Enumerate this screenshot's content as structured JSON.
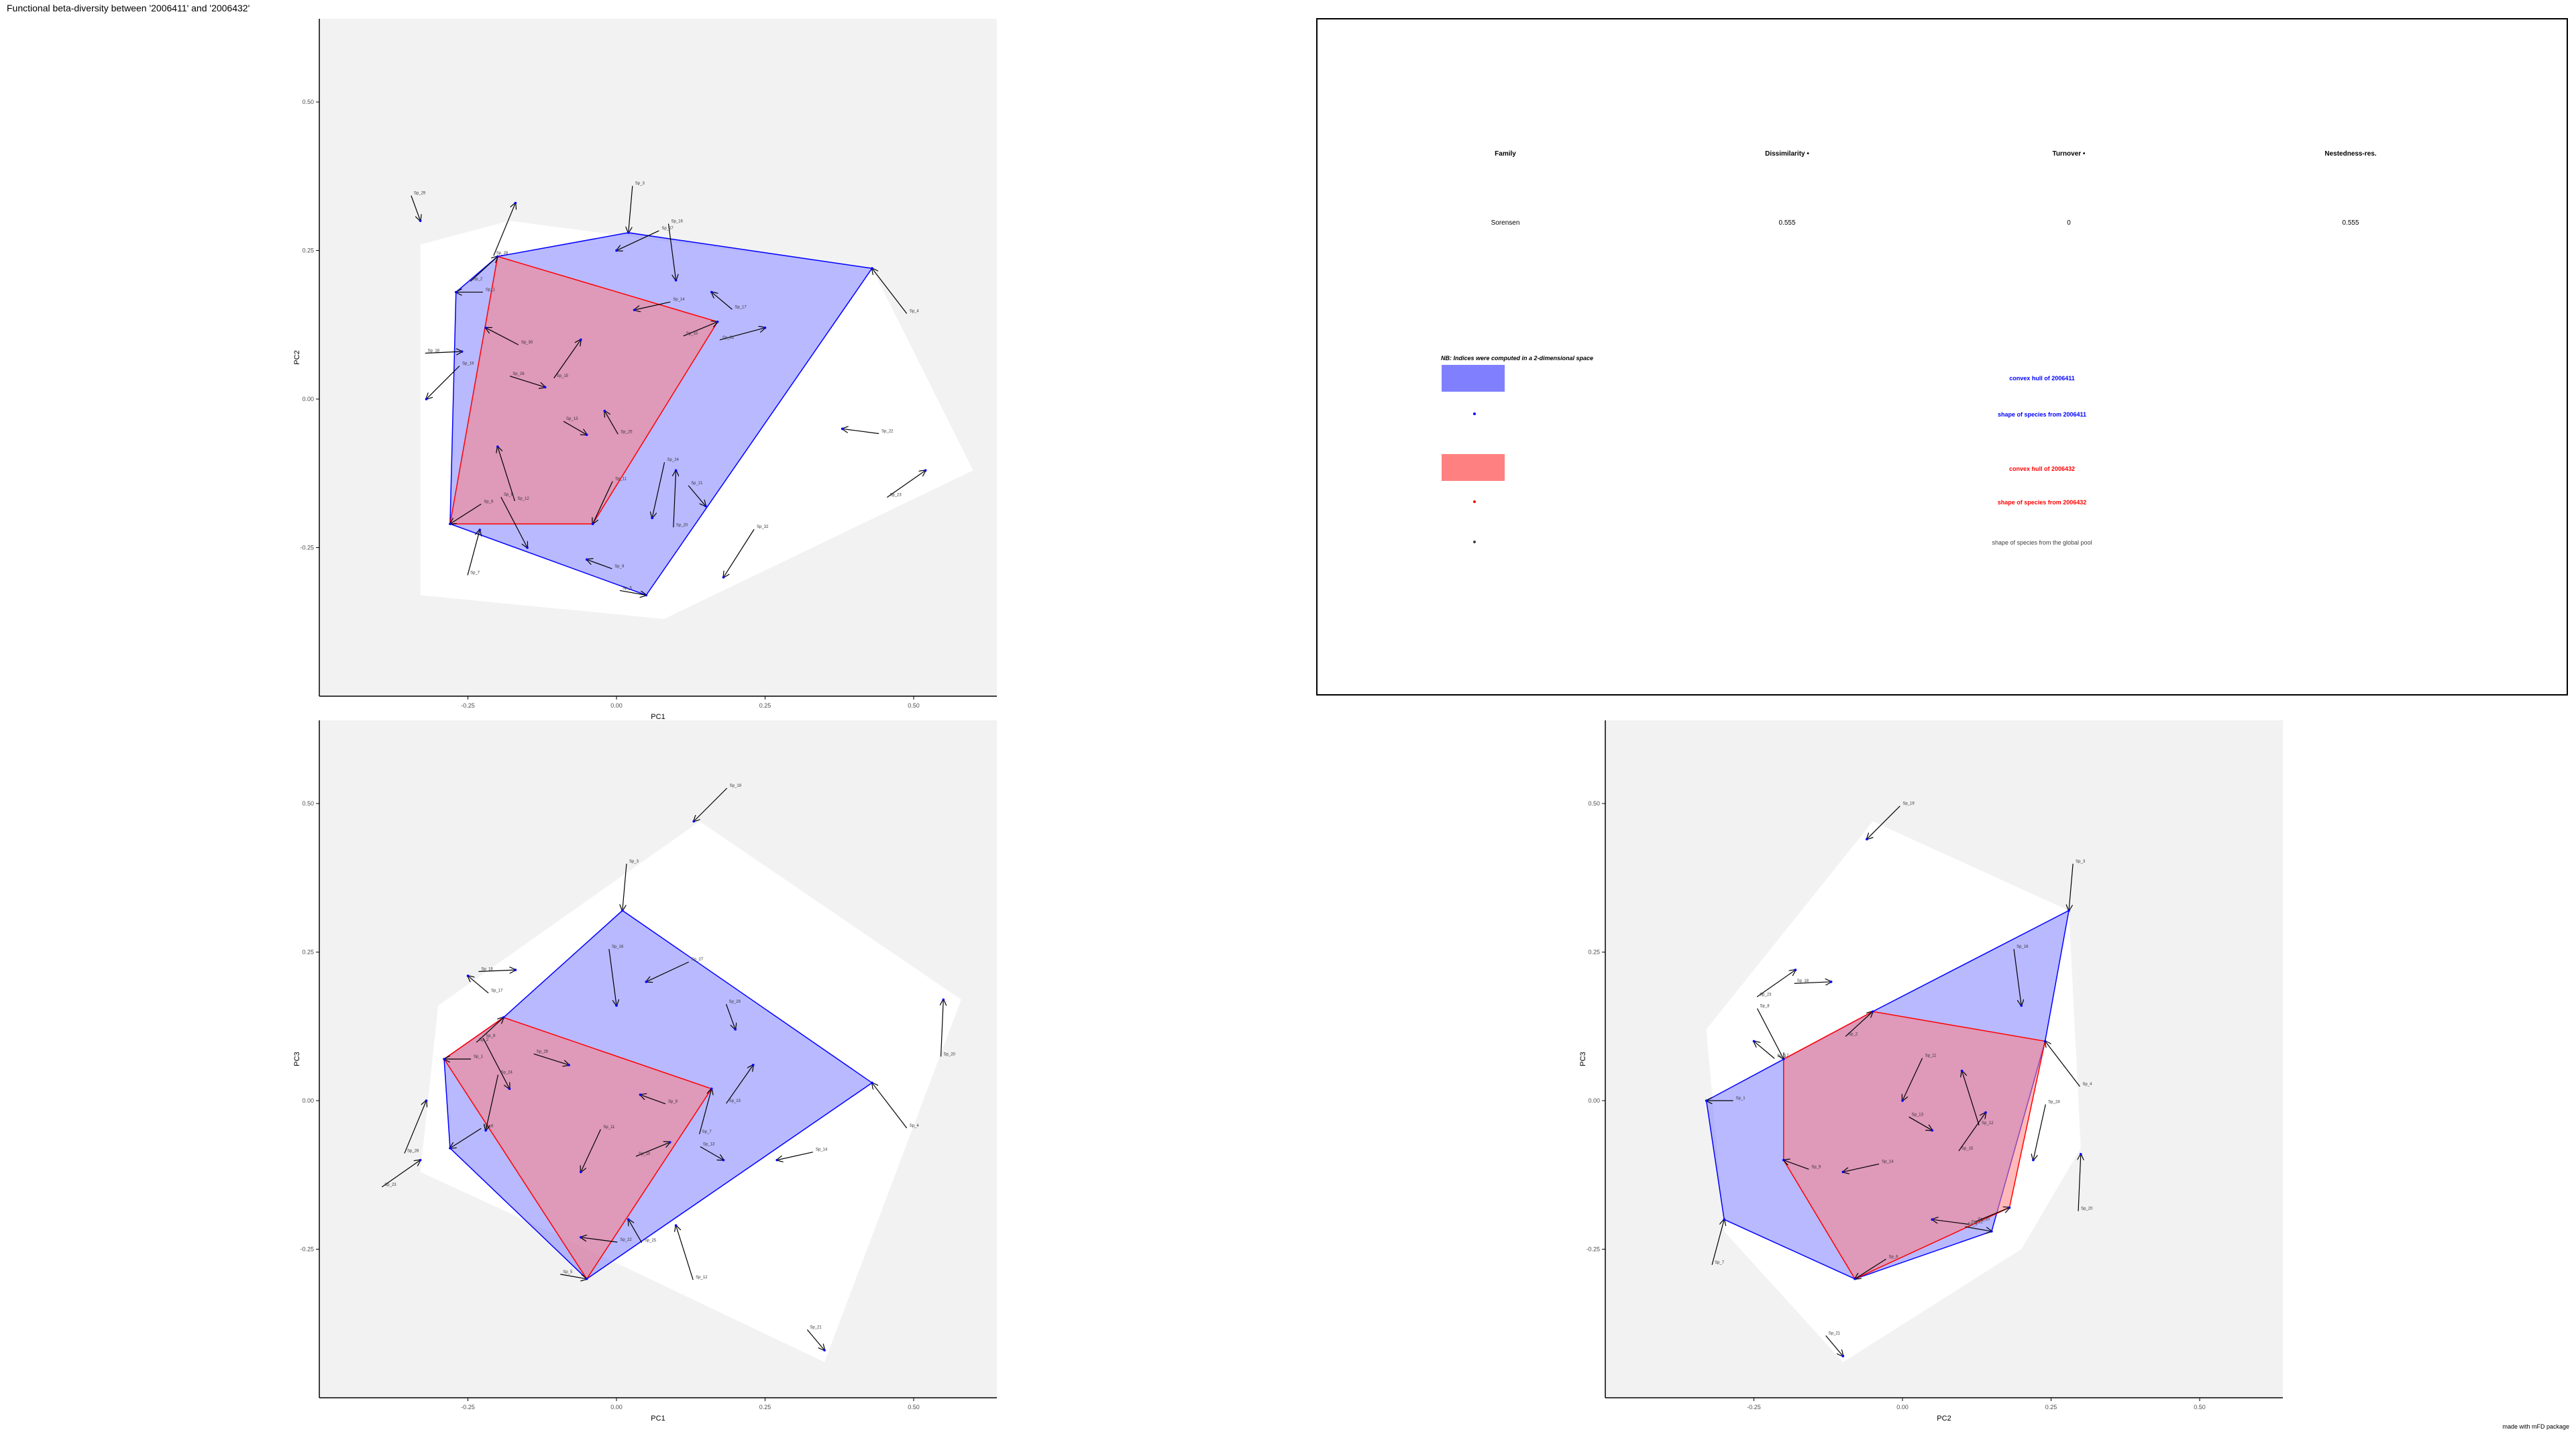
{
  "title": "Functional beta-diversity between '2006411' and '2006432'",
  "footer": "made with mFD package",
  "colors": {
    "background_panel": "#f2f2f2",
    "global_hull": "#ffffff",
    "asb1_fill": "#8080ff",
    "asb1_stroke": "#0000ff",
    "asb2_fill": "#ff8080",
    "asb2_stroke": "#ff0000",
    "global_species": "#404040"
  },
  "table": {
    "headers": [
      "Family",
      "Dissimilarity •",
      "Turnover •",
      "Nestedness-res."
    ],
    "row": [
      "Sorensen",
      "0.555",
      "0",
      "0.555"
    ]
  },
  "legend": {
    "note": "NB: Indices were computed in a 2-dimensional space",
    "items": [
      {
        "label": "convex hull of 2006411",
        "color": "#0000ff",
        "kind": "swatch",
        "fill": "#8080ff"
      },
      {
        "label": "shape of species from 2006411",
        "color": "#0000ff",
        "kind": "dot"
      },
      {
        "label": "convex hull of 2006432",
        "color": "#ff0000",
        "kind": "swatch",
        "fill": "#ff8080"
      },
      {
        "label": "shape of species from 2006432",
        "color": "#ff0000",
        "kind": "dot"
      },
      {
        "label": "shape of species from the global pool",
        "color": "#404040",
        "kind": "dot"
      }
    ]
  },
  "chart_data": [
    {
      "type": "scatter",
      "xlabel": "PC1",
      "ylabel": "PC2",
      "xlim": [
        -0.5,
        0.64
      ],
      "ylim": [
        -0.5,
        0.64
      ],
      "xticks": [
        -0.25,
        0.0,
        0.25,
        0.5
      ],
      "yticks": [
        -0.25,
        0.0,
        0.25,
        0.5
      ],
      "tick_labels": [
        "-0.25",
        "0.00",
        "0.25",
        "0.50"
      ],
      "global_hull": [
        [
          -0.33,
          0.26
        ],
        [
          -0.18,
          0.3
        ],
        [
          0.43,
          0.22
        ],
        [
          0.6,
          -0.12
        ],
        [
          0.08,
          -0.37
        ],
        [
          -0.33,
          -0.33
        ]
      ],
      "asb1_hull": [
        [
          -0.27,
          0.18
        ],
        [
          -0.2,
          0.24
        ],
        [
          0.02,
          0.28
        ],
        [
          0.43,
          0.22
        ],
        [
          0.05,
          -0.33
        ],
        [
          -0.28,
          -0.21
        ]
      ],
      "asb2_hull": [
        [
          -0.2,
          0.24
        ],
        [
          0.17,
          0.13
        ],
        [
          -0.04,
          -0.21
        ],
        [
          -0.28,
          -0.21
        ]
      ],
      "points": [
        [
          -0.27,
          0.18
        ],
        [
          -0.2,
          0.24
        ],
        [
          0.02,
          0.28
        ],
        [
          0.43,
          0.22
        ],
        [
          0.05,
          -0.33
        ],
        [
          -0.28,
          -0.21
        ],
        [
          -0.23,
          -0.22
        ],
        [
          -0.15,
          -0.25
        ],
        [
          -0.05,
          -0.27
        ],
        [
          0.17,
          0.13
        ],
        [
          -0.04,
          -0.21
        ],
        [
          -0.2,
          -0.08
        ],
        [
          -0.05,
          -0.06
        ],
        [
          0.03,
          0.15
        ],
        [
          -0.06,
          0.1
        ],
        [
          0.1,
          0.2
        ],
        [
          0.16,
          0.18
        ],
        [
          -0.26,
          0.08
        ],
        [
          -0.32,
          0.0
        ],
        [
          0.1,
          -0.12
        ],
        [
          0.15,
          -0.18
        ],
        [
          0.38,
          -0.05
        ],
        [
          0.52,
          -0.12
        ],
        [
          0.06,
          -0.2
        ],
        [
          -0.02,
          -0.02
        ],
        [
          -0.12,
          0.02
        ],
        [
          0.0,
          0.25
        ],
        [
          -0.17,
          0.33
        ],
        [
          -0.33,
          0.3
        ],
        [
          -0.22,
          0.12
        ],
        [
          0.25,
          0.12
        ],
        [
          0.18,
          -0.3
        ]
      ],
      "labels": [
        "Sp_1",
        "Sp_2",
        "Sp_3",
        "Sp_4",
        "Sp_5",
        "Sp_6",
        "Sp_7",
        "Sp_8",
        "Sp_9",
        "Sp_10",
        "Sp_11",
        "Sp_12",
        "Sp_13",
        "Sp_14",
        "Sp_15",
        "Sp_16",
        "Sp_17",
        "Sp_18",
        "Sp_19",
        "Sp_20",
        "Sp_21",
        "Sp_22",
        "Sp_23",
        "Sp_24",
        "Sp_25",
        "Sp_26",
        "Sp_27",
        "Sp_28",
        "Sp_29",
        "Sp_30",
        "Sp_31",
        "Sp_32"
      ]
    },
    {
      "type": "scatter",
      "xlabel": "PC1",
      "ylabel": "PC3",
      "xlim": [
        -0.5,
        0.64
      ],
      "ylim": [
        -0.5,
        0.64
      ],
      "xticks": [
        -0.25,
        0.0,
        0.25,
        0.5
      ],
      "yticks": [
        -0.25,
        0.0,
        0.25,
        0.5
      ],
      "tick_labels": [
        "-0.25",
        "0.00",
        "0.25",
        "0.50"
      ],
      "global_hull": [
        [
          -0.3,
          0.16
        ],
        [
          0.14,
          0.47
        ],
        [
          0.58,
          0.17
        ],
        [
          0.35,
          -0.44
        ],
        [
          -0.07,
          -0.24
        ],
        [
          -0.33,
          -0.12
        ]
      ],
      "asb1_hull": [
        [
          -0.29,
          0.07
        ],
        [
          -0.19,
          0.14
        ],
        [
          0.01,
          0.32
        ],
        [
          0.43,
          0.03
        ],
        [
          -0.05,
          -0.3
        ],
        [
          -0.28,
          -0.08
        ]
      ],
      "asb2_hull": [
        [
          -0.29,
          0.07
        ],
        [
          -0.19,
          0.14
        ],
        [
          0.16,
          0.02
        ],
        [
          -0.05,
          -0.3
        ]
      ],
      "points": [
        [
          -0.29,
          0.07
        ],
        [
          -0.19,
          0.14
        ],
        [
          0.01,
          0.32
        ],
        [
          0.43,
          0.03
        ],
        [
          -0.05,
          -0.3
        ],
        [
          -0.28,
          -0.08
        ],
        [
          0.16,
          0.02
        ],
        [
          -0.18,
          0.02
        ],
        [
          0.04,
          0.01
        ],
        [
          0.09,
          -0.07
        ],
        [
          -0.06,
          -0.12
        ],
        [
          0.1,
          -0.21
        ],
        [
          0.18,
          -0.1
        ],
        [
          0.27,
          -0.1
        ],
        [
          0.23,
          0.06
        ],
        [
          0.0,
          0.16
        ],
        [
          -0.25,
          0.21
        ],
        [
          -0.17,
          0.22
        ],
        [
          0.13,
          0.47
        ],
        [
          0.55,
          0.17
        ],
        [
          0.35,
          -0.42
        ],
        [
          -0.06,
          -0.23
        ],
        [
          -0.33,
          -0.1
        ],
        [
          -0.22,
          -0.05
        ],
        [
          0.02,
          -0.2
        ],
        [
          -0.08,
          0.06
        ],
        [
          0.05,
          0.2
        ],
        [
          -0.32,
          0.0
        ],
        [
          0.2,
          0.12
        ]
      ],
      "labels": [
        "Sp_1",
        "Sp_2",
        "Sp_3",
        "Sp_4",
        "Sp_5",
        "Sp_6",
        "Sp_7",
        "Sp_8",
        "Sp_9",
        "Sp_10",
        "Sp_11",
        "Sp_12",
        "Sp_13",
        "Sp_14",
        "Sp_15",
        "Sp_16",
        "Sp_17",
        "Sp_18",
        "Sp_19",
        "Sp_20",
        "Sp_21",
        "Sp_22",
        "Sp_23",
        "Sp_24",
        "Sp_25",
        "Sp_26",
        "Sp_27",
        "Sp_28",
        "Sp_29"
      ]
    },
    {
      "type": "scatter",
      "xlabel": "PC2",
      "ylabel": "PC3",
      "xlim": [
        -0.5,
        0.64
      ],
      "ylim": [
        -0.5,
        0.64
      ],
      "xticks": [
        -0.25,
        0.0,
        0.25,
        0.5
      ],
      "yticks": [
        -0.25,
        0.0,
        0.25,
        0.5
      ],
      "tick_labels": [
        "-0.25",
        "0.00",
        "0.25",
        "0.50"
      ],
      "global_hull": [
        [
          -0.33,
          0.12
        ],
        [
          -0.05,
          0.47
        ],
        [
          0.28,
          0.32
        ],
        [
          0.3,
          -0.08
        ],
        [
          0.2,
          -0.25
        ],
        [
          -0.1,
          -0.44
        ],
        [
          -0.3,
          -0.22
        ]
      ],
      "asb1_hull": [
        [
          -0.33,
          0.0
        ],
        [
          -0.05,
          0.15
        ],
        [
          0.28,
          0.32
        ],
        [
          0.24,
          0.1
        ],
        [
          0.15,
          -0.22
        ],
        [
          -0.08,
          -0.3
        ],
        [
          -0.3,
          -0.2
        ]
      ],
      "asb2_hull": [
        [
          -0.2,
          0.07
        ],
        [
          -0.05,
          0.15
        ],
        [
          0.24,
          0.1
        ],
        [
          0.18,
          -0.18
        ],
        [
          -0.08,
          -0.3
        ],
        [
          -0.2,
          -0.1
        ]
      ],
      "points": [
        [
          -0.33,
          0.0
        ],
        [
          -0.05,
          0.15
        ],
        [
          0.28,
          0.32
        ],
        [
          0.24,
          0.1
        ],
        [
          0.15,
          -0.22
        ],
        [
          -0.08,
          -0.3
        ],
        [
          -0.3,
          -0.2
        ],
        [
          -0.2,
          0.07
        ],
        [
          -0.2,
          -0.1
        ],
        [
          0.18,
          -0.18
        ],
        [
          0.0,
          0.0
        ],
        [
          0.1,
          0.05
        ],
        [
          0.05,
          -0.05
        ],
        [
          -0.1,
          -0.12
        ],
        [
          0.14,
          -0.02
        ],
        [
          0.2,
          0.16
        ],
        [
          -0.25,
          0.1
        ],
        [
          -0.12,
          0.2
        ],
        [
          -0.06,
          0.44
        ],
        [
          0.3,
          -0.09
        ],
        [
          -0.1,
          -0.43
        ],
        [
          0.05,
          -0.2
        ],
        [
          -0.18,
          0.22
        ],
        [
          0.22,
          -0.1
        ]
      ],
      "labels": [
        "Sp_1",
        "Sp_2",
        "Sp_3",
        "Sp_4",
        "Sp_5",
        "Sp_6",
        "Sp_7",
        "Sp_8",
        "Sp_9",
        "Sp_10",
        "Sp_11",
        "Sp_12",
        "Sp_13",
        "Sp_14",
        "Sp_15",
        "Sp_16",
        "Sp_17",
        "Sp_18",
        "Sp_19",
        "Sp_20",
        "Sp_21",
        "Sp_22",
        "Sp_23",
        "Sp_24"
      ]
    }
  ]
}
